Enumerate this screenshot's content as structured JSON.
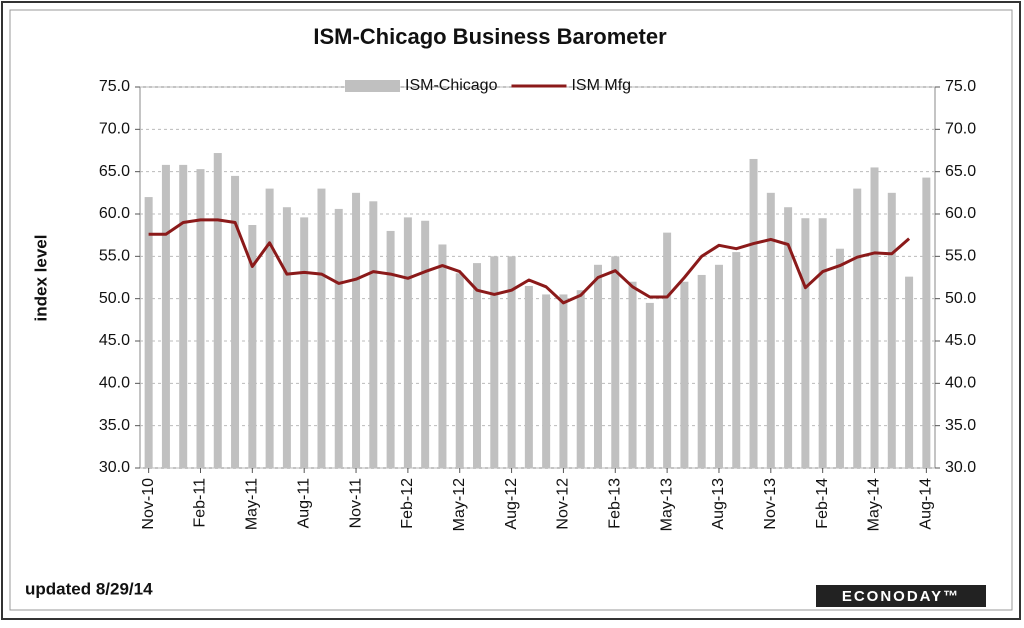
{
  "chart_data": {
    "type": "bar_line",
    "title": "ISM-Chicago Business  Barometer",
    "y_label": "index level",
    "annotation": "updated 8/29/14",
    "logo": "ECONODAY™",
    "legend": "top",
    "grid": true,
    "categories": [
      "Nov-10",
      null,
      null,
      "Feb-11",
      null,
      null,
      "May-11",
      null,
      null,
      "Aug-11",
      null,
      null,
      "Nov-11",
      null,
      null,
      "Feb-12",
      null,
      null,
      "May-12",
      null,
      null,
      "Aug-12",
      null,
      null,
      "Nov-12",
      null,
      null,
      "Feb-13",
      null,
      null,
      "May-13",
      null,
      null,
      "Aug-13",
      null,
      null,
      "Nov-13",
      null,
      null,
      "Feb-14",
      null,
      null,
      "May-14",
      null,
      null,
      "Aug-14"
    ],
    "series": [
      {
        "name": "ISM-Chicago",
        "type": "bar",
        "color": "#c0c0c0",
        "values": [
          62.0,
          65.8,
          65.8,
          65.3,
          67.2,
          64.5,
          58.7,
          63.0,
          60.8,
          59.6,
          63.0,
          60.6,
          62.5,
          61.5,
          58.0,
          59.6,
          59.2,
          56.4,
          53.0,
          54.2,
          55.0,
          55.0,
          51.5,
          50.5,
          50.5,
          51.0,
          54.0,
          55.0,
          52.0,
          49.5,
          57.8,
          52.0,
          52.8,
          54.0,
          55.5,
          66.5,
          62.5,
          60.8,
          59.5,
          59.5,
          55.9,
          63.0,
          65.5,
          62.5,
          52.6,
          64.3
        ]
      },
      {
        "name": "ISM Mfg",
        "type": "line",
        "color": "#8b1a1a",
        "values": [
          57.6,
          57.6,
          59.0,
          59.3,
          59.3,
          59.0,
          53.8,
          56.6,
          52.9,
          53.1,
          52.9,
          51.8,
          52.3,
          53.2,
          52.9,
          52.4,
          53.2,
          53.9,
          53.2,
          51.0,
          50.5,
          51.0,
          52.2,
          51.4,
          49.5,
          50.4,
          52.5,
          53.3,
          51.4,
          50.2,
          50.2,
          52.5,
          55.0,
          56.3,
          55.9,
          56.5,
          57.0,
          56.4,
          51.3,
          53.2,
          53.9,
          54.9,
          55.4,
          55.3,
          57.1,
          null
        ]
      }
    ],
    "ylim": [
      30,
      75
    ],
    "yticks": [
      {
        "value": 30,
        "label": "30.0"
      },
      {
        "value": 35,
        "label": "35.0"
      },
      {
        "value": 40,
        "label": "40.0"
      },
      {
        "value": 45,
        "label": "45.0"
      },
      {
        "value": 50,
        "label": "50.0"
      },
      {
        "value": 55,
        "label": "55.0"
      },
      {
        "value": 60,
        "label": "60.0"
      },
      {
        "value": 65,
        "label": "65.0"
      },
      {
        "value": 70,
        "label": "70.0"
      },
      {
        "value": 75,
        "label": "75.0"
      }
    ],
    "y2lim": [
      30,
      75
    ],
    "y2ticks": [
      {
        "value": 30,
        "label": "30.0"
      },
      {
        "value": 35,
        "label": "35.0"
      },
      {
        "value": 40,
        "label": "40.0"
      },
      {
        "value": 45,
        "label": "45.0"
      },
      {
        "value": 50,
        "label": "50.0"
      },
      {
        "value": 55,
        "label": "55.0"
      },
      {
        "value": 60,
        "label": "60.0"
      },
      {
        "value": 65,
        "label": "65.0"
      },
      {
        "value": 70,
        "label": "70.0"
      },
      {
        "value": 75,
        "label": "75.0"
      }
    ]
  }
}
